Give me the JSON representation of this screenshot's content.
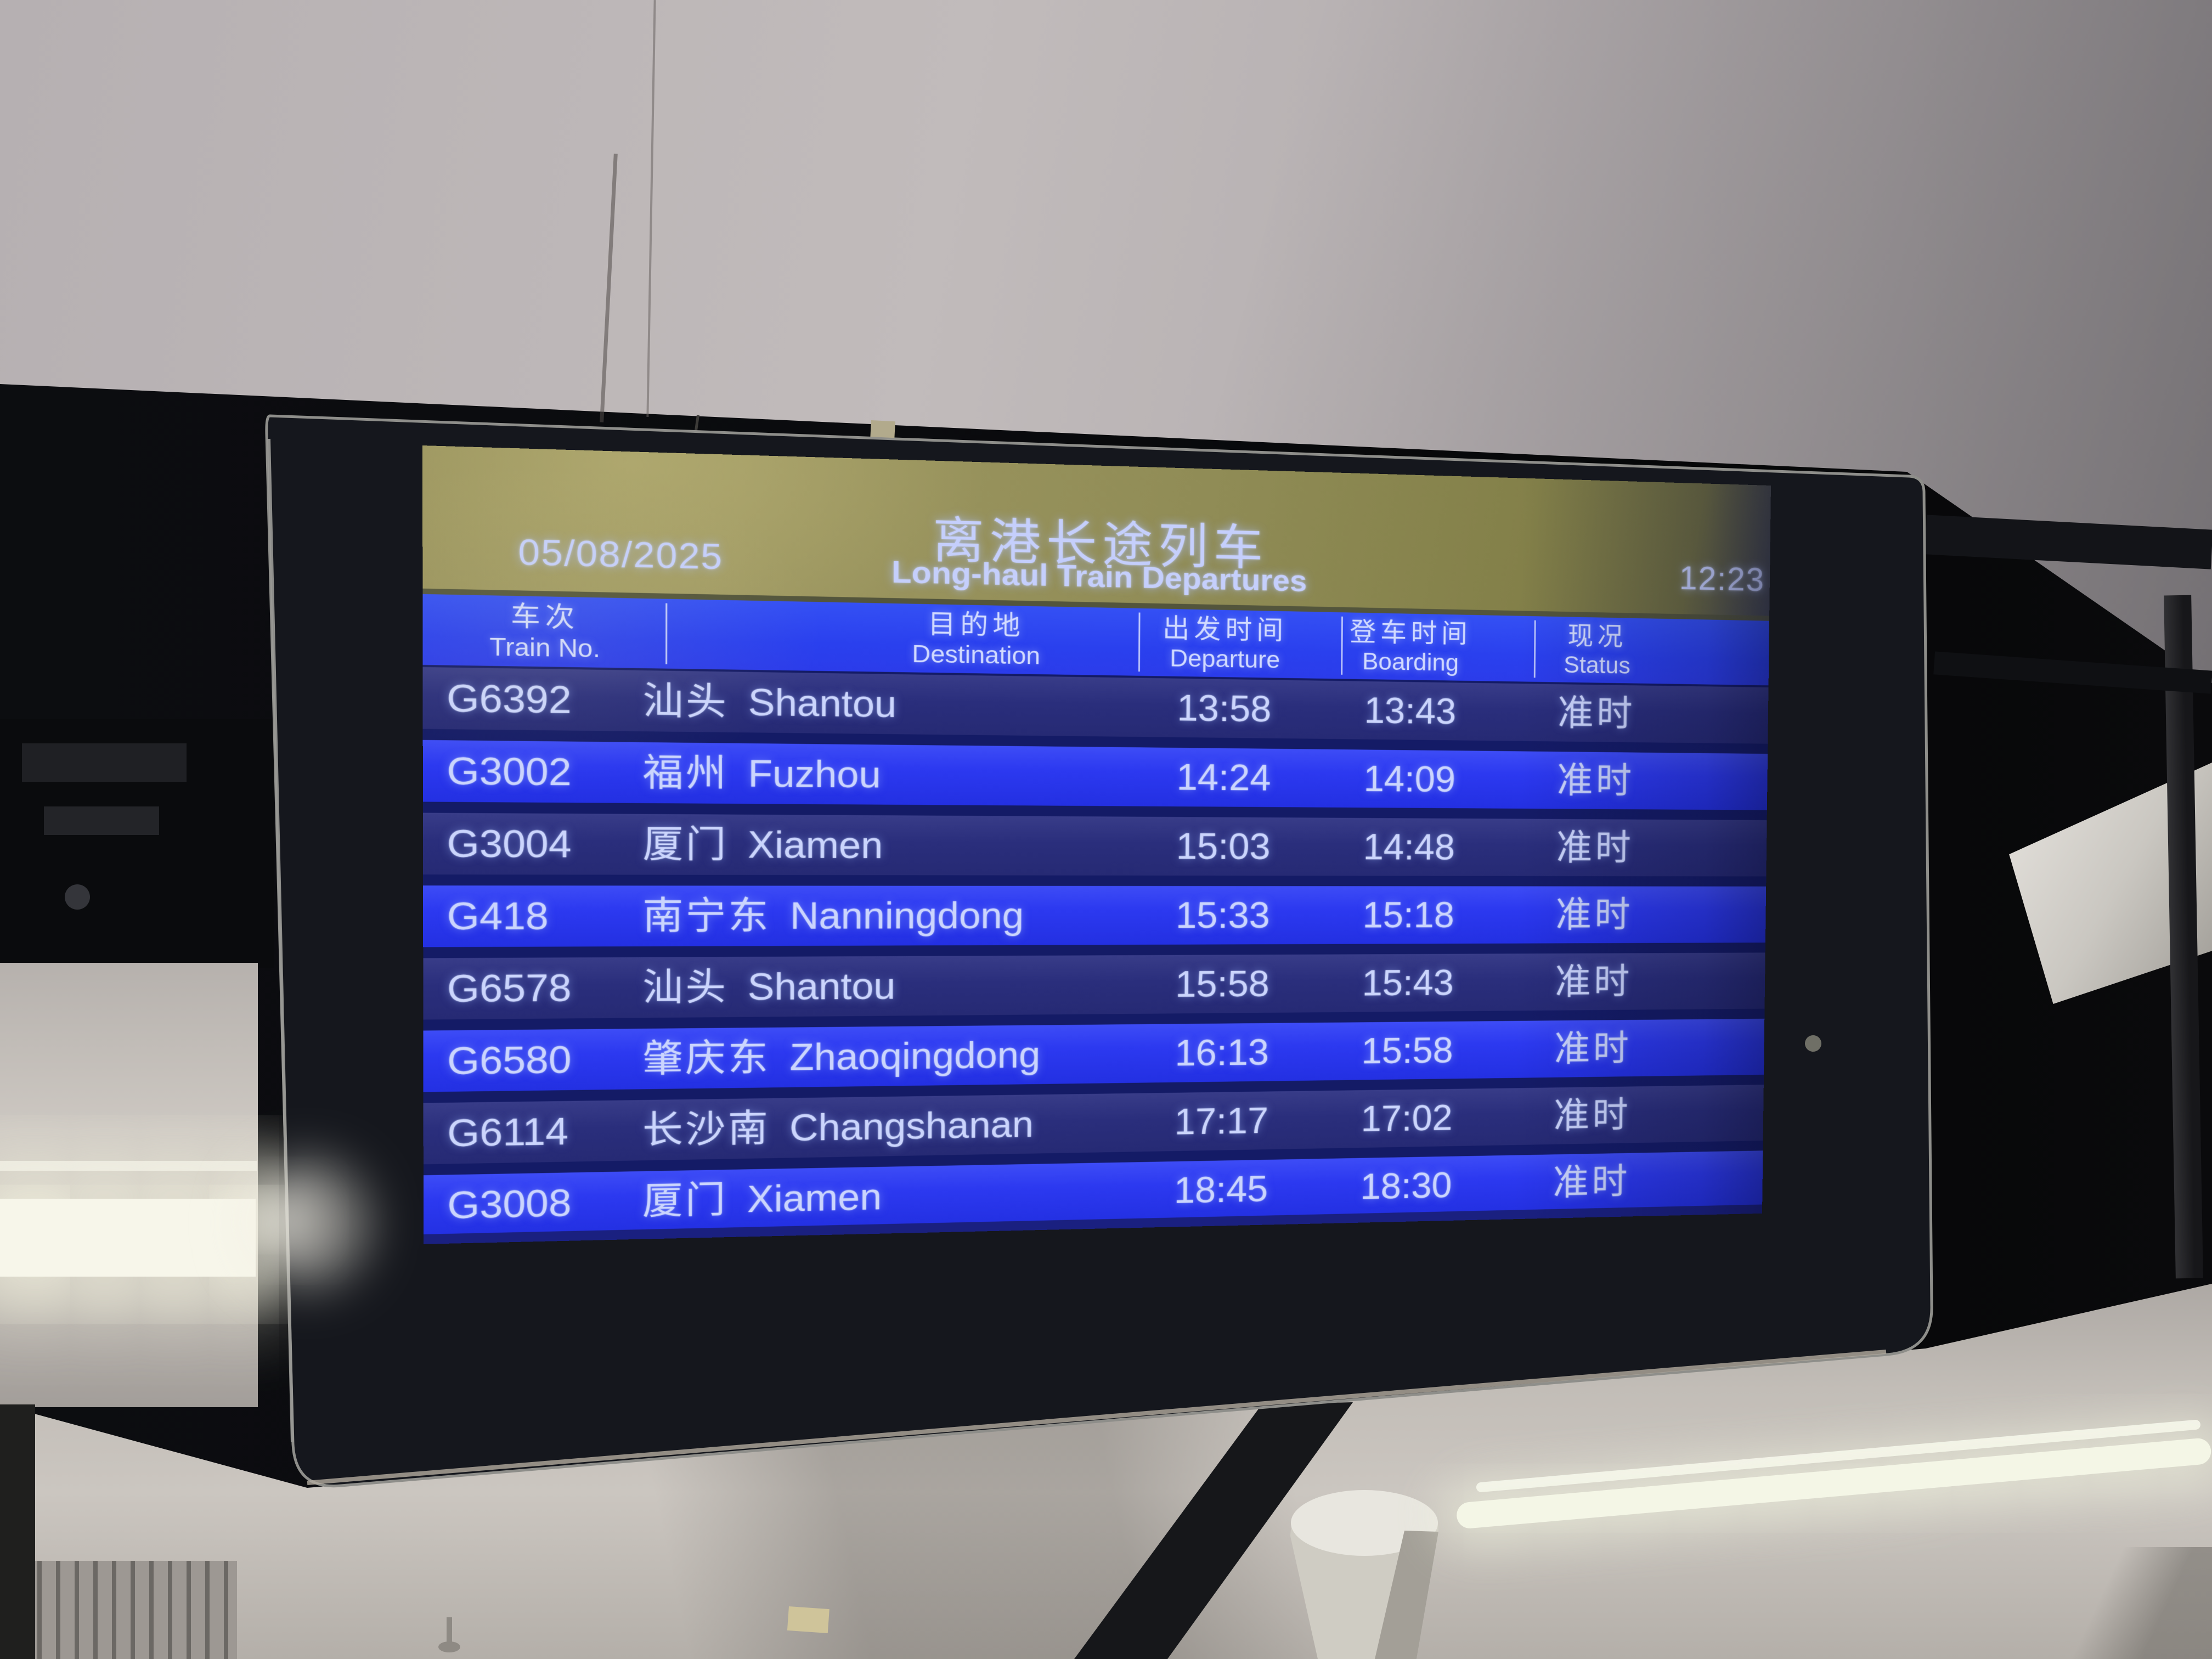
{
  "board": {
    "date": "05/08/2025",
    "clock": "12:23",
    "title_zh": "离港长途列车",
    "title_en": "Long-haul Train Departures",
    "columns": [
      {
        "zh": "车次",
        "en": "Train No."
      },
      {
        "zh": "目的地",
        "en": "Destination"
      },
      {
        "zh": "出发时间",
        "en": "Departure"
      },
      {
        "zh": "登车时间",
        "en": "Boarding"
      },
      {
        "zh": "现况",
        "en": "Status"
      }
    ],
    "rows": [
      {
        "train_no": "G6392",
        "dest_zh": "汕头",
        "dest_en": "Shantou",
        "departure": "13:58",
        "boarding": "13:43",
        "status": "准时"
      },
      {
        "train_no": "G3002",
        "dest_zh": "福州",
        "dest_en": "Fuzhou",
        "departure": "14:24",
        "boarding": "14:09",
        "status": "准时"
      },
      {
        "train_no": "G3004",
        "dest_zh": "厦门",
        "dest_en": "Xiamen",
        "departure": "15:03",
        "boarding": "14:48",
        "status": "准时"
      },
      {
        "train_no": "G418",
        "dest_zh": "南宁东",
        "dest_en": "Nanningdong",
        "departure": "15:33",
        "boarding": "15:18",
        "status": "准时"
      },
      {
        "train_no": "G6578",
        "dest_zh": "汕头",
        "dest_en": "Shantou",
        "departure": "15:58",
        "boarding": "15:43",
        "status": "准时"
      },
      {
        "train_no": "G6580",
        "dest_zh": "肇庆东",
        "dest_en": "Zhaoqingdong",
        "departure": "16:13",
        "boarding": "15:58",
        "status": "准时"
      },
      {
        "train_no": "G6114",
        "dest_zh": "长沙南",
        "dest_en": "Changshanan",
        "departure": "17:17",
        "boarding": "17:02",
        "status": "准时"
      },
      {
        "train_no": "G3008",
        "dest_zh": "厦门",
        "dest_en": "Xiamen",
        "departure": "18:45",
        "boarding": "18:30",
        "status": "准时"
      }
    ],
    "colors": {
      "header_blue": "#2c42f0",
      "row_bright_blue": "#2c39f0",
      "row_dark_navy": "#2b2f80",
      "text_blue_white": "#cbd5fd",
      "glare_olive": "#938f59"
    }
  }
}
